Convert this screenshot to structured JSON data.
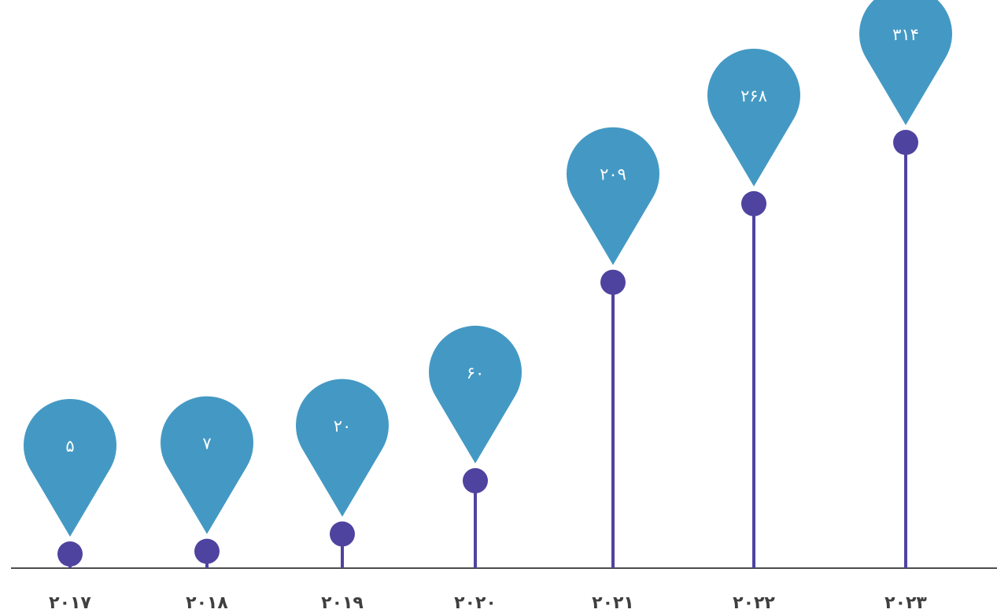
{
  "chart_data": {
    "type": "lollipop",
    "categories": [
      "۲۰۱۷",
      "۲۰۱۸",
      "۲۰۱۹",
      "۲۰۲۰",
      "۲۰۲۱",
      "۲۰۲۲",
      "۲۰۲۳"
    ],
    "values": [
      5,
      7,
      20,
      60,
      209,
      268,
      314
    ],
    "value_labels": [
      "۵",
      "۷",
      "۲۰",
      "۶۰",
      "۲۰۹",
      "۲۶۸",
      "۳۱۴"
    ],
    "title": "",
    "xlabel": "",
    "ylabel": "",
    "ylim": [
      0,
      314
    ],
    "grid": false,
    "legend": "none"
  },
  "colors": {
    "stem": "#4f43a0",
    "dot": "#4f43a0",
    "pin": "#4499c4",
    "axis": "#4d4d4d",
    "label_text": "#ffffff",
    "tick_text": "#3f3f3f"
  }
}
